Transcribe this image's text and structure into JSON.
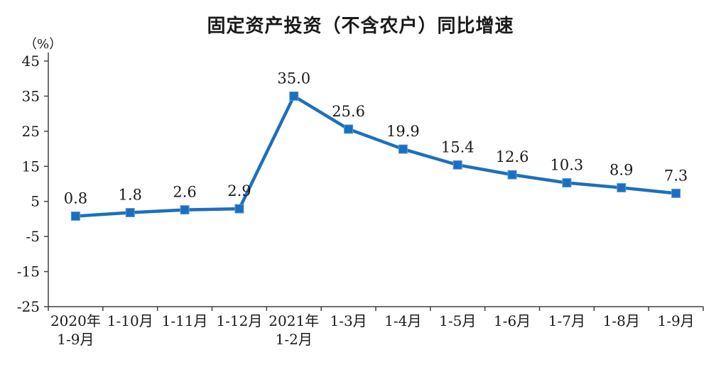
{
  "title": "固定资产投资（不含农户）同比增速",
  "unit_label": "（%）",
  "chart_data": {
    "type": "line",
    "title": "固定资产投资（不含农户）同比增速",
    "ylabel": "（%）",
    "xlabel": "",
    "grid": false,
    "legend": "none",
    "categories": [
      [
        "2020年",
        "1-9月"
      ],
      [
        "1-10月"
      ],
      [
        "1-11月"
      ],
      [
        "1-12月"
      ],
      [
        "2021年",
        "1-2月"
      ],
      [
        "1-3月"
      ],
      [
        "1-4月"
      ],
      [
        "1-5月"
      ],
      [
        "1-6月"
      ],
      [
        "1-7月"
      ],
      [
        "1-8月"
      ],
      [
        "1-9月"
      ]
    ],
    "values": [
      0.8,
      1.8,
      2.6,
      2.9,
      35.0,
      25.6,
      19.9,
      15.4,
      12.6,
      10.3,
      8.9,
      7.3
    ],
    "ylim": [
      -25,
      45
    ],
    "yticks": [
      45,
      35,
      25,
      15,
      5,
      -5,
      -15,
      -25
    ],
    "ytick_interval": 10,
    "line_color": "#1c6fbf",
    "marker": "square",
    "marker_edge_color": "#5b9bd5",
    "axis_color": "#404040",
    "label_color": "#1a1a1a"
  }
}
